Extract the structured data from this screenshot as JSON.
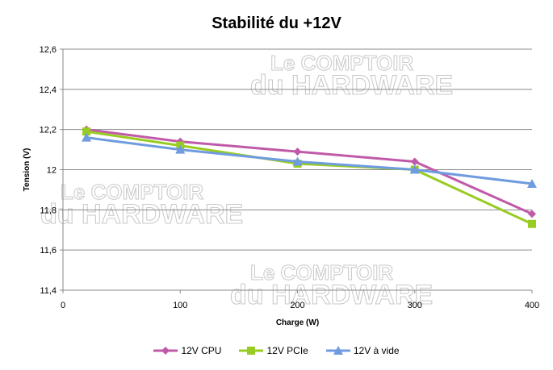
{
  "chart_data": {
    "type": "line",
    "title": "Stabilité du +12V",
    "xlabel": "Charge (W)",
    "ylabel": "Tension (V)",
    "xlim": [
      0,
      400
    ],
    "ylim": [
      11.4,
      12.6
    ],
    "x_ticks": [
      "0",
      "100",
      "200",
      "300",
      "400"
    ],
    "y_ticks": [
      "11,4",
      "11,6",
      "11,8",
      "12",
      "12,2",
      "12,4",
      "12,6"
    ],
    "grid": true,
    "legend_position": "bottom",
    "x": [
      20,
      100,
      200,
      300,
      400
    ],
    "series": [
      {
        "name": "12V CPU",
        "color": "#c05aa8",
        "marker": "diamond",
        "values": [
          12.2,
          12.14,
          12.09,
          12.04,
          11.78
        ]
      },
      {
        "name": "12V PCIe",
        "color": "#99cc22",
        "marker": "square",
        "values": [
          12.19,
          12.12,
          12.03,
          12.0,
          11.73
        ]
      },
      {
        "name": "12V à vide",
        "color": "#6f9be0",
        "marker": "triangle",
        "values": [
          12.16,
          12.1,
          12.04,
          12.0,
          11.93
        ]
      }
    ]
  },
  "watermark": {
    "line1": "Le COMPTOIR",
    "line2": "du HARDWARE"
  }
}
